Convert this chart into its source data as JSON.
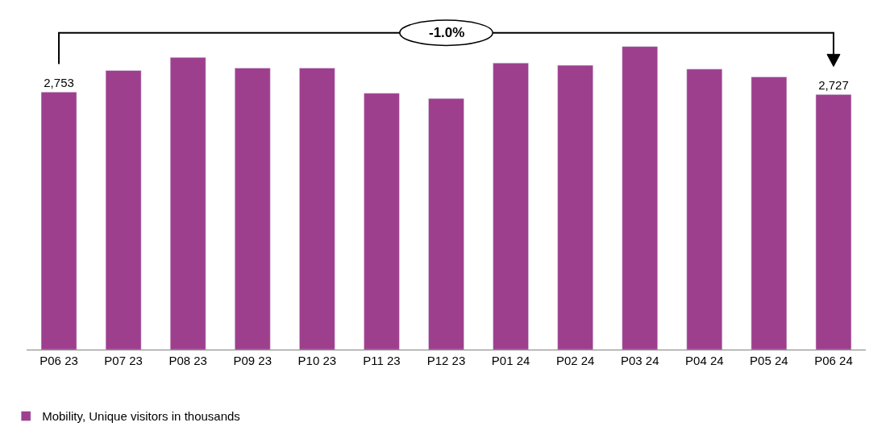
{
  "chart_data": {
    "type": "bar",
    "categories": [
      "P06 23",
      "P07 23",
      "P08 23",
      "P09 23",
      "P10 23",
      "P11 23",
      "P12 23",
      "P01 24",
      "P02 24",
      "P03 24",
      "P04 24",
      "P05 24",
      "P06 24"
    ],
    "series": [
      {
        "name": "Mobility, Unique visitors in thousands",
        "color": "#9e3f8e",
        "values": [
          2753,
          2984,
          3124,
          3010,
          3010,
          2741,
          2685,
          3064,
          3039,
          3241,
          2999,
          2916,
          2727
        ],
        "value_labels": [
          "2,753",
          null,
          null,
          null,
          null,
          null,
          null,
          null,
          null,
          null,
          null,
          null,
          "2,727"
        ]
      }
    ],
    "tick_labels": "x",
    "annotations": [
      "-1.0%"
    ],
    "legend": "bottom left"
  }
}
